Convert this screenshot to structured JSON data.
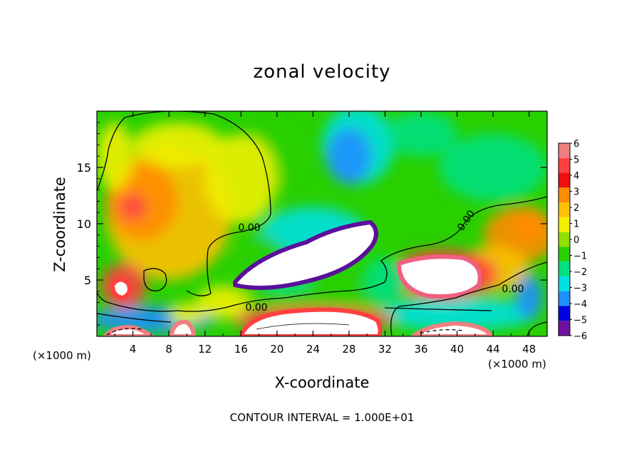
{
  "chart_data": {
    "type": "heatmap",
    "title": "zonal velocity",
    "xlabel": "X-coordinate",
    "ylabel": "Z-coordinate",
    "x_unit_label": "(×1000 m)",
    "footer": "CONTOUR INTERVAL = 1.000E+01",
    "xlim": [
      0,
      50
    ],
    "ylim": [
      0,
      20
    ],
    "x_ticks": [
      4,
      8,
      12,
      16,
      20,
      24,
      28,
      32,
      36,
      40,
      44,
      48
    ],
    "x_tick_labels": [
      "4",
      "8",
      "12",
      "16",
      "20",
      "24",
      "28",
      "32",
      "36",
      "40",
      "44",
      "48"
    ],
    "y_ticks": [
      5,
      10,
      15
    ],
    "y_tick_labels": [
      "5",
      "10",
      "15"
    ],
    "colorbar": {
      "levels": [
        6,
        5,
        4,
        3,
        2,
        1,
        0,
        -1,
        -2,
        -3,
        -4,
        -5,
        -6
      ],
      "labels": [
        "6",
        "5",
        "4",
        "3",
        "2",
        "1",
        "0",
        "−1",
        "−2",
        "−3",
        "−4",
        "−5",
        "−6"
      ],
      "colors": [
        "#f08080",
        "#ff4040",
        "#ee1010",
        "#ff8c00",
        "#ffc000",
        "#f0f000",
        "#90e000",
        "#28d000",
        "#00e080",
        "#00e0e0",
        "#1e90ff",
        "#0000e0",
        "#7010a0"
      ]
    },
    "zero_contour_labels": [
      "0.00",
      "0.00",
      "0.00",
      "0.00"
    ],
    "field_features": [
      {
        "label": "positive core",
        "x": 4,
        "z": 12,
        "value": 4.5
      },
      {
        "label": "positive core",
        "x": 3,
        "z": 4.5,
        "value": 6.5
      },
      {
        "label": "positive band",
        "x": 24,
        "z": 1.2,
        "value": 6.5
      },
      {
        "label": "positive core",
        "x": 38.5,
        "z": 5.5,
        "value": 6.5
      },
      {
        "label": "positive core",
        "x": 48,
        "z": 9.5,
        "value": 3
      },
      {
        "label": "negative jet",
        "x": 25,
        "z": 7.5,
        "value": -6.5
      },
      {
        "label": "negative core",
        "x": 29,
        "z": 17,
        "value": -4.5
      },
      {
        "label": "negative band",
        "x": 6,
        "z": 1.5,
        "value": -4.5
      },
      {
        "label": "negative band",
        "x": 40,
        "z": 2,
        "value": -4.5
      },
      {
        "label": "positive core",
        "x": 16,
        "z": 14,
        "value": 1.5
      },
      {
        "label": "negative core",
        "x": 48,
        "z": 3.5,
        "value": -4
      }
    ]
  }
}
